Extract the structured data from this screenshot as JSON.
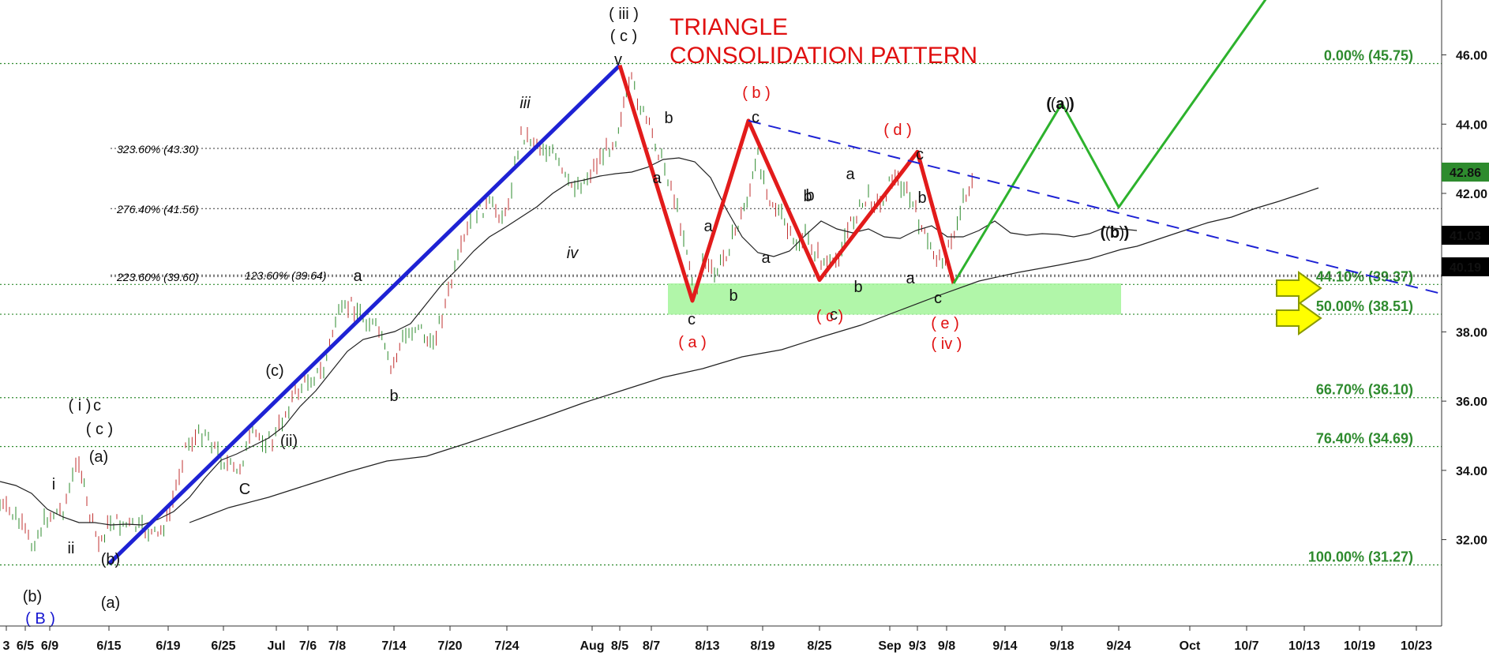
{
  "chart_data": {
    "type": "line",
    "title": "TRIANGLE\nCONSOLIDATION PATTERN",
    "title_lines": [
      "TRIANGLE",
      "CONSOLIDATION PATTERN"
    ],
    "ylim": [
      30,
      47.5
    ],
    "y_ticks": [
      "32.00",
      "34.00",
      "36.00",
      "38.00",
      "40.00",
      "42.00",
      "44.00",
      "46.00"
    ],
    "x_ticks": [
      "3",
      "6/5",
      "6/9",
      "6/15",
      "6/19",
      "6/25",
      "Jul",
      "7/6",
      "7/8",
      "7/14",
      "7/20",
      "7/24",
      "Aug",
      "8/5",
      "8/7",
      "8/13",
      "8/19",
      "8/25",
      "Sep",
      "9/3",
      "9/8",
      "9/14",
      "9/18",
      "9/24",
      "Oct",
      "10/7",
      "10/13",
      "10/19",
      "10/23"
    ],
    "price_badges": [
      {
        "value": "42.86",
        "color": "#2e8b2e"
      },
      {
        "value": "41.03",
        "color": "#000000"
      },
      {
        "value": "40.19",
        "color": "#000000"
      }
    ],
    "fib_retracements": [
      {
        "label": "0.00% (45.75)",
        "price": 45.75
      },
      {
        "label": "44.10% (39.37)",
        "price": 39.37
      },
      {
        "label": "50.00% (38.51)",
        "price": 38.51
      },
      {
        "label": "66.70% (36.10)",
        "price": 36.1
      },
      {
        "label": "76.40% (34.69)",
        "price": 34.69
      },
      {
        "label": "100.00% (31.27)",
        "price": 31.27
      }
    ],
    "fib_extensions": [
      {
        "label": "323.60% (43.30)",
        "price": 43.3
      },
      {
        "label": "276.40% (41.56)",
        "price": 41.56
      },
      {
        "label": "223.60% (39.60)",
        "price": 39.6
      },
      {
        "label": "123.60% (39.64)",
        "price": 39.64
      }
    ],
    "series": [
      {
        "color": "#1e22d4",
        "label_type": "impulse",
        "points": [
          {
            "x": "6/15",
            "y": 31.3
          },
          {
            "x": "8/5",
            "y": 45.7
          }
        ]
      },
      {
        "color": "#e21b1b",
        "label_type": "triangle",
        "points": [
          {
            "x": "8/5",
            "y": 45.7
          },
          {
            "x": "8/10",
            "y": 38.9
          },
          {
            "x": "8/17",
            "y": 44.1
          },
          {
            "x": "8/25",
            "y": 39.5
          },
          {
            "x": "9/3",
            "y": 43.2
          },
          {
            "x": "9/9",
            "y": 39.4
          }
        ]
      },
      {
        "color": "#2db22d",
        "label_type": "projection",
        "points": [
          {
            "x": "9/9",
            "y": 39.4
          },
          {
            "x": "9/18",
            "y": 44.6
          },
          {
            "x": "9/24",
            "y": 41.6
          },
          {
            "x": "10/14",
            "y": 47.6
          }
        ]
      },
      {
        "color": "#1e22d4",
        "label_type": "trendline",
        "style": "dashed",
        "points": [
          {
            "x": "8/17",
            "y": 44.1
          },
          {
            "x": "10/24",
            "y": 39.1
          }
        ]
      }
    ],
    "wave_labels": {
      "black": [
        "( iii )",
        "( c )",
        "v",
        "iii",
        "iv",
        "a",
        "b",
        "c",
        "b",
        "a",
        "b",
        "c",
        "a",
        "b",
        "c",
        "a",
        "b",
        "c",
        "a",
        "b",
        "c",
        "b",
        "a",
        "c",
        "( i )",
        "( c )",
        "(a)",
        "(b)",
        "(a)",
        "(b)",
        "(c)",
        "(ii)",
        "C",
        "i",
        "ii",
        "(a)",
        "(b)",
        "( a )",
        "( b )"
      ],
      "red": [
        "( b )",
        "( a )",
        "( c )",
        "( d )",
        "( e )",
        "( iv )"
      ],
      "blue": [
        "( B )"
      ]
    },
    "target_zone": {
      "from": 38.5,
      "to": 39.4,
      "color": "#a8f5a0"
    }
  }
}
